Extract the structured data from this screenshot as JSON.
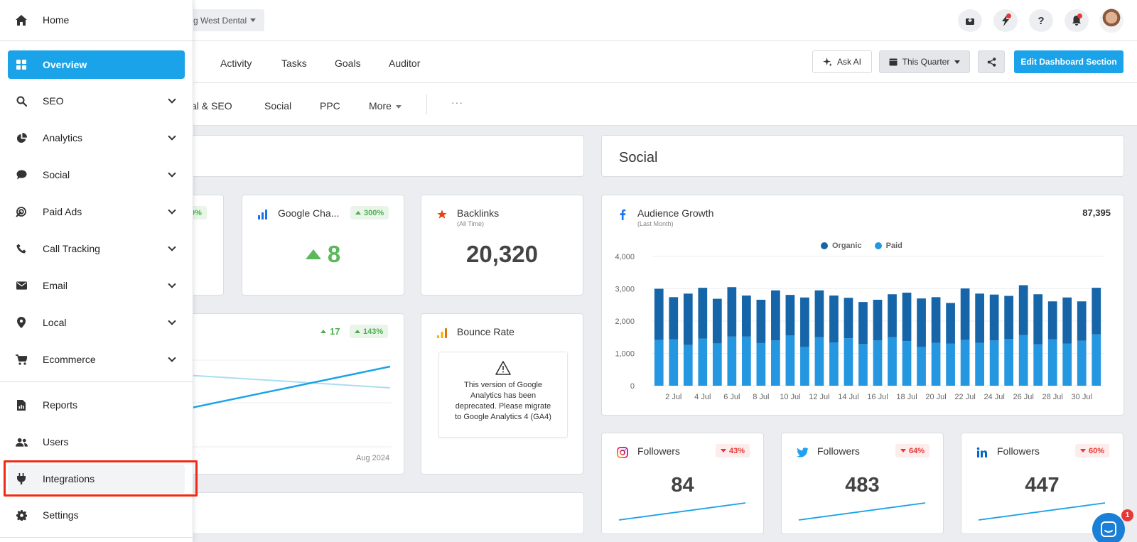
{
  "header": {
    "client_name": "g West Dental"
  },
  "tabs": [
    "Activity",
    "Tasks",
    "Goals",
    "Auditor"
  ],
  "toolbar": {
    "ask_ai": "Ask AI",
    "date_range": "This Quarter",
    "edit_section": "Edit Dashboard Section"
  },
  "subtabs": {
    "local_seo": "cal & SEO",
    "social": "Social",
    "ppc": "PPC",
    "more": "More",
    "ellipsis": "···"
  },
  "left_widgets": {
    "partial_badge": "0%",
    "google_changes": {
      "title": "Google Cha...",
      "badge": "300%",
      "value": "8"
    },
    "backlinks": {
      "title": "Backlinks",
      "sub": "(All Time)",
      "value": "20,320"
    },
    "line_widget": {
      "delta": "17",
      "badge": "143%",
      "axis_label": "Aug 2024"
    },
    "bounce_rate": {
      "title": "Bounce Rate",
      "message": "This version of Google Analytics has been deprecated. Please migrate to Google Analytics 4 (GA4)"
    }
  },
  "social": {
    "title": "Social",
    "audience": {
      "title": "Audience Growth",
      "sub": "(Last Month)",
      "total": "87,395"
    },
    "followers": [
      {
        "network": "instagram",
        "label": "Followers",
        "badge": "43%",
        "value": "84"
      },
      {
        "network": "twitter",
        "label": "Followers",
        "badge": "64%",
        "value": "483"
      },
      {
        "network": "linkedin",
        "label": "Followers",
        "badge": "60%",
        "value": "447"
      }
    ]
  },
  "chart_data": {
    "type": "bar",
    "title": "Audience Growth",
    "stacked": true,
    "ylim": [
      0,
      4000
    ],
    "yticks": [
      "4,000",
      "3,000",
      "2,000",
      "1,000",
      "0"
    ],
    "xtick_labels": [
      "2 Jul",
      "4 Jul",
      "6 Jul",
      "8 Jul",
      "10 Jul",
      "12 Jul",
      "14 Jul",
      "16 Jul",
      "18 Jul",
      "20 Jul",
      "22 Jul",
      "24 Jul",
      "26 Jul",
      "28 Jul",
      "30 Jul"
    ],
    "legend": [
      "Organic",
      "Paid"
    ],
    "colors": {
      "organic": "#1565a8",
      "paid": "#2596e0"
    },
    "series": [
      {
        "name": "Paid",
        "values": [
          1420,
          1440,
          1260,
          1460,
          1310,
          1520,
          1520,
          1320,
          1400,
          1560,
          1200,
          1500,
          1340,
          1470,
          1290,
          1400,
          1500,
          1380,
          1200,
          1330,
          1300,
          1420,
          1330,
          1400,
          1450,
          1570,
          1280,
          1440,
          1300,
          1390,
          1590
        ]
      },
      {
        "name": "Organic",
        "values": [
          1580,
          1300,
          1590,
          1570,
          1380,
          1530,
          1270,
          1340,
          1550,
          1250,
          1530,
          1450,
          1450,
          1250,
          1300,
          1260,
          1330,
          1500,
          1500,
          1410,
          1260,
          1590,
          1520,
          1420,
          1330,
          1540,
          1550,
          1170,
          1430,
          1220,
          1440
        ]
      }
    ]
  },
  "sidebar": {
    "home": "Home",
    "overview": "Overview",
    "seo": "SEO",
    "analytics": "Analytics",
    "social": "Social",
    "paid_ads": "Paid Ads",
    "call_tracking": "Call Tracking",
    "email": "Email",
    "local": "Local",
    "ecommerce": "Ecommerce",
    "reports": "Reports",
    "users": "Users",
    "integrations": "Integrations",
    "settings": "Settings"
  },
  "chat": {
    "unread": "1"
  }
}
